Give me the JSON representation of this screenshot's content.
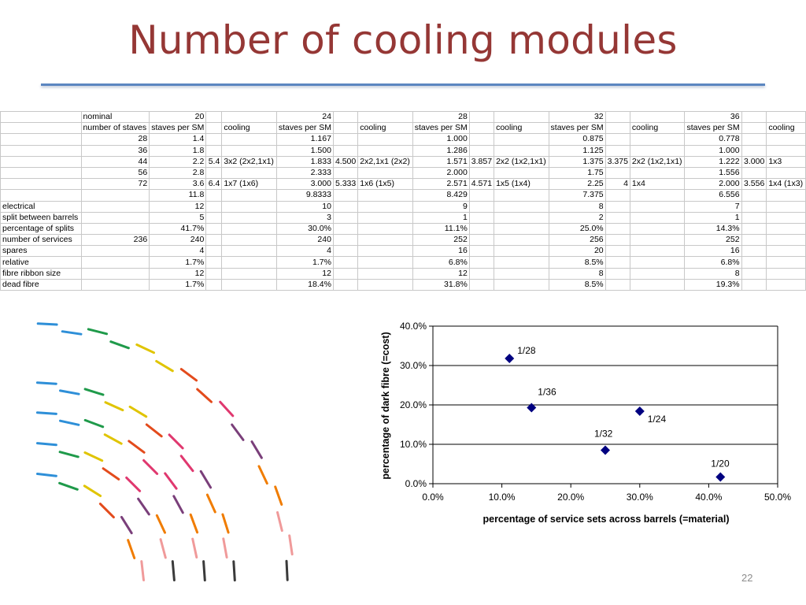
{
  "slide": {
    "title": "Number of cooling modules",
    "page_number": "22"
  },
  "table": {
    "rows": [
      [
        "",
        "nominal",
        "20",
        "",
        "",
        "24",
        "",
        "",
        "28",
        "",
        "",
        "32",
        "",
        "",
        "36",
        "",
        ""
      ],
      [
        "",
        "number of staves",
        "staves per SM",
        "",
        "cooling",
        "staves per SM",
        "",
        "cooling",
        "staves per SM",
        "",
        "cooling",
        "staves per SM",
        "",
        "cooling",
        "staves per SM",
        "",
        "cooling"
      ],
      [
        "",
        "28",
        "1.4",
        "",
        "",
        "1.167",
        "",
        "",
        "1.000",
        "",
        "",
        "0.875",
        "",
        "",
        "0.778",
        "",
        ""
      ],
      [
        "",
        "36",
        "1.8",
        "",
        "",
        "1.500",
        "",
        "",
        "1.286",
        "",
        "",
        "1.125",
        "",
        "",
        "1.000",
        "",
        ""
      ],
      [
        "",
        "44",
        "2.2",
        "5.4",
        "3x2 (2x2,1x1)",
        "1.833",
        "4.500",
        "2x2,1x1 (2x2)",
        "1.571",
        "3.857",
        "2x2 (1x2,1x1)",
        "1.375",
        "3.375",
        "2x2 (1x2,1x1)",
        "1.222",
        "3.000",
        "1x3"
      ],
      [
        "",
        "56",
        "2.8",
        "",
        "",
        "2.333",
        "",
        "",
        "2.000",
        "",
        "",
        "1.75",
        "",
        "",
        "1.556",
        "",
        ""
      ],
      [
        "",
        "72",
        "3.6",
        "6.4",
        "1x7 (1x6)",
        "3.000",
        "5.333",
        "1x6 (1x5)",
        "2.571",
        "4.571",
        "1x5 (1x4)",
        "2.25",
        "4",
        "1x4",
        "2.000",
        "3.556",
        "1x4 (1x3)"
      ],
      [
        "",
        "",
        "11.8",
        "",
        "",
        "9.8333",
        "",
        "",
        "8.429",
        "",
        "",
        "7.375",
        "",
        "",
        "6.556",
        "",
        ""
      ],
      [
        "electrical",
        "",
        "12",
        "",
        "",
        "10",
        "",
        "",
        "9",
        "",
        "",
        "8",
        "",
        "",
        "7",
        "",
        ""
      ],
      [
        "split between barrels",
        "",
        "5",
        "",
        "",
        "3",
        "",
        "",
        "1",
        "",
        "",
        "2",
        "",
        "",
        "1",
        "",
        ""
      ],
      [
        "percentage of splits",
        "",
        "41.7%",
        "",
        "",
        "30.0%",
        "",
        "",
        "11.1%",
        "",
        "",
        "25.0%",
        "",
        "",
        "14.3%",
        "",
        ""
      ],
      [
        "number of services",
        "236",
        "240",
        "",
        "",
        "240",
        "",
        "",
        "252",
        "",
        "",
        "256",
        "",
        "",
        "252",
        "",
        ""
      ],
      [
        "spares",
        "",
        "4",
        "",
        "",
        "4",
        "",
        "",
        "16",
        "",
        "",
        "20",
        "",
        "",
        "16",
        "",
        ""
      ],
      [
        "relative",
        "",
        "1.7%",
        "",
        "",
        "1.7%",
        "",
        "",
        "6.8%",
        "",
        "",
        "8.5%",
        "",
        "",
        "6.8%",
        "",
        ""
      ],
      [
        "fibre ribbon size",
        "",
        "12",
        "",
        "",
        "12",
        "",
        "",
        "12",
        "",
        "",
        "8",
        "",
        "",
        "8",
        "",
        ""
      ],
      [
        "dead fibre",
        "",
        "1.7%",
        "",
        "",
        "18.4%",
        "",
        "",
        "31.8%",
        "",
        "",
        "8.5%",
        "",
        "",
        "19.3%",
        "",
        ""
      ]
    ]
  },
  "chart_data": {
    "type": "scatter",
    "xlabel": "percentage of service sets across barrels (=material)",
    "ylabel": "percentage of dark fibre (=cost)",
    "xlim": [
      0,
      0.5
    ],
    "ylim": [
      0,
      0.4
    ],
    "x_ticks": [
      "0.0%",
      "10.0%",
      "20.0%",
      "30.0%",
      "40.0%",
      "50.0%"
    ],
    "y_ticks": [
      "0.0%",
      "10.0%",
      "20.0%",
      "30.0%",
      "40.0%"
    ],
    "grid": "horizontal",
    "marker_color": "#000080",
    "points": [
      {
        "label": "1/28",
        "x": 0.111,
        "y": 0.318
      },
      {
        "label": "1/36",
        "x": 0.143,
        "y": 0.193
      },
      {
        "label": "1/24",
        "x": 0.3,
        "y": 0.184
      },
      {
        "label": "1/32",
        "x": 0.25,
        "y": 0.085
      },
      {
        "label": "1/20",
        "x": 0.417,
        "y": 0.017
      }
    ]
  },
  "illustration": {
    "name": "nested-stave-arcs",
    "arc_count": 5,
    "stave_colors": [
      "#2e8fd8",
      "#1f9a4a",
      "#e0c400",
      "#e34b1c",
      "#e0386f",
      "#7a3f7a",
      "#f07c00",
      "#f09a9a",
      "#3a3a3a"
    ]
  }
}
